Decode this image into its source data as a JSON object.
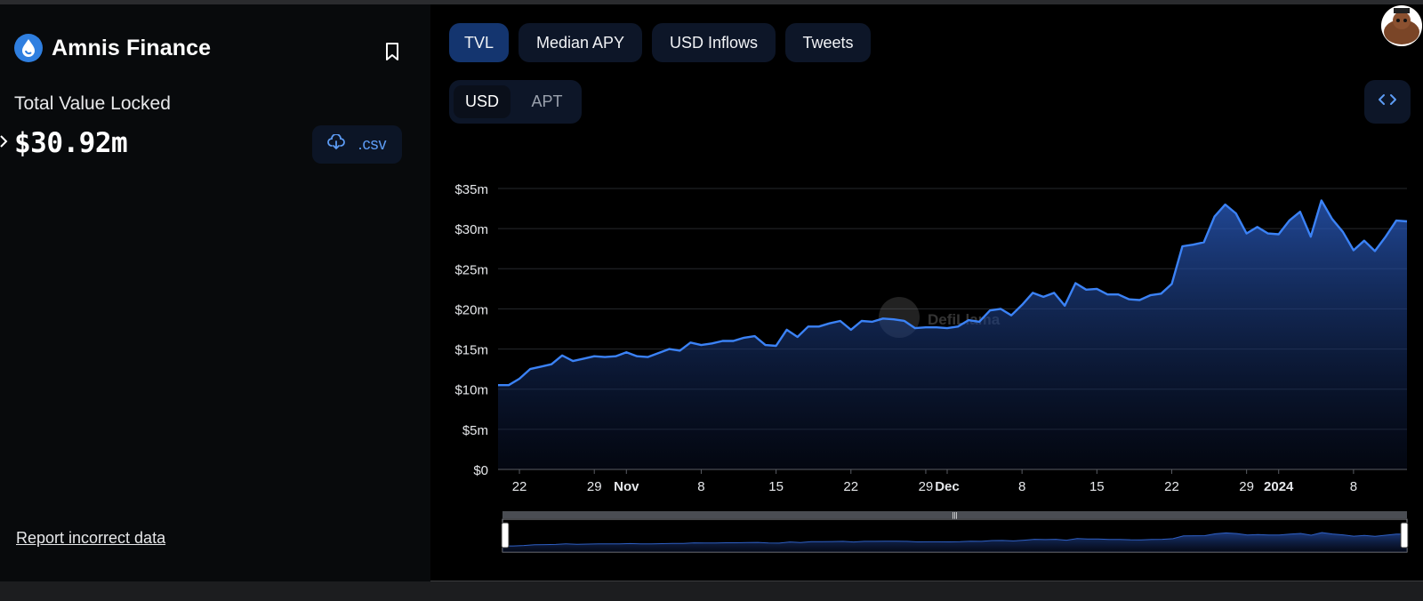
{
  "protocol": {
    "name": "Amnis Finance",
    "logo_icon": "amnis-drop-logo",
    "tvl_label": "Total Value Locked",
    "tvl_value": "$30.92m",
    "csv_label": ".csv",
    "report_label": "Report incorrect data"
  },
  "tabs": [
    {
      "label": "TVL",
      "active": true
    },
    {
      "label": "Median APY",
      "active": false
    },
    {
      "label": "USD Inflows",
      "active": false
    },
    {
      "label": "Tweets",
      "active": false
    }
  ],
  "denomination": [
    {
      "label": "USD",
      "active": true
    },
    {
      "label": "APT",
      "active": false
    }
  ],
  "watermark": "DefiLlama",
  "colors": {
    "accent": "#3b82f6",
    "tab_active": "#14356f",
    "panel_bg": "#080a0c",
    "chart_bg": "#000000"
  },
  "chart_data": {
    "type": "area",
    "title": "",
    "xlabel": "",
    "ylabel": "",
    "ylim": [
      0,
      35000000
    ],
    "yticks": [
      0,
      5000000,
      10000000,
      15000000,
      20000000,
      25000000,
      30000000,
      35000000
    ],
    "ytick_labels": [
      "$0",
      "$5m",
      "$10m",
      "$15m",
      "$20m",
      "$25m",
      "$30m",
      "$35m"
    ],
    "xlim": [
      "2023-10-20",
      "2024-01-11"
    ],
    "xticks": [
      {
        "date": "2023-10-22",
        "label": "22",
        "bold": false
      },
      {
        "date": "2023-10-29",
        "label": "29",
        "bold": false
      },
      {
        "date": "2023-11-01",
        "label": "Nov",
        "bold": true
      },
      {
        "date": "2023-11-08",
        "label": "8",
        "bold": false
      },
      {
        "date": "2023-11-15",
        "label": "15",
        "bold": false
      },
      {
        "date": "2023-11-22",
        "label": "22",
        "bold": false
      },
      {
        "date": "2023-11-29",
        "label": "29",
        "bold": false
      },
      {
        "date": "2023-12-01",
        "label": "Dec",
        "bold": true
      },
      {
        "date": "2023-12-08",
        "label": "8",
        "bold": false
      },
      {
        "date": "2023-12-15",
        "label": "15",
        "bold": false
      },
      {
        "date": "2023-12-22",
        "label": "22",
        "bold": false
      },
      {
        "date": "2023-12-29",
        "label": "29",
        "bold": false
      },
      {
        "date": "2024-01-01",
        "label": "2024",
        "bold": true
      },
      {
        "date": "2024-01-08",
        "label": "8",
        "bold": false
      }
    ],
    "grid": true,
    "legend": "none",
    "series": [
      {
        "values_unit": "USD",
        "points": [
          [
            "2023-10-20",
            10500000
          ],
          [
            "2023-10-21",
            10500000
          ],
          [
            "2023-10-22",
            11300000
          ],
          [
            "2023-10-23",
            12500000
          ],
          [
            "2023-10-24",
            12800000
          ],
          [
            "2023-10-25",
            13100000
          ],
          [
            "2023-10-26",
            14200000
          ],
          [
            "2023-10-27",
            13500000
          ],
          [
            "2023-10-28",
            13800000
          ],
          [
            "2023-10-29",
            14100000
          ],
          [
            "2023-10-30",
            14000000
          ],
          [
            "2023-10-31",
            14100000
          ],
          [
            "2023-11-01",
            14600000
          ],
          [
            "2023-11-02",
            14100000
          ],
          [
            "2023-11-03",
            14000000
          ],
          [
            "2023-11-04",
            14500000
          ],
          [
            "2023-11-05",
            15000000
          ],
          [
            "2023-11-06",
            14800000
          ],
          [
            "2023-11-07",
            15800000
          ],
          [
            "2023-11-08",
            15500000
          ],
          [
            "2023-11-09",
            15700000
          ],
          [
            "2023-11-10",
            16000000
          ],
          [
            "2023-11-11",
            16000000
          ],
          [
            "2023-11-12",
            16400000
          ],
          [
            "2023-11-13",
            16600000
          ],
          [
            "2023-11-14",
            15500000
          ],
          [
            "2023-11-15",
            15400000
          ],
          [
            "2023-11-16",
            17400000
          ],
          [
            "2023-11-17",
            16500000
          ],
          [
            "2023-11-18",
            17800000
          ],
          [
            "2023-11-19",
            17800000
          ],
          [
            "2023-11-20",
            18200000
          ],
          [
            "2023-11-21",
            18500000
          ],
          [
            "2023-11-22",
            17400000
          ],
          [
            "2023-11-23",
            18500000
          ],
          [
            "2023-11-24",
            18400000
          ],
          [
            "2023-11-25",
            18800000
          ],
          [
            "2023-11-26",
            18700000
          ],
          [
            "2023-11-27",
            18500000
          ],
          [
            "2023-11-28",
            17600000
          ],
          [
            "2023-11-29",
            17700000
          ],
          [
            "2023-11-30",
            17700000
          ],
          [
            "2023-12-01",
            17600000
          ],
          [
            "2023-12-02",
            17800000
          ],
          [
            "2023-12-03",
            18600000
          ],
          [
            "2023-12-04",
            18400000
          ],
          [
            "2023-12-05",
            19800000
          ],
          [
            "2023-12-06",
            20000000
          ],
          [
            "2023-12-07",
            19200000
          ],
          [
            "2023-12-08",
            20500000
          ],
          [
            "2023-12-09",
            22000000
          ],
          [
            "2023-12-10",
            21500000
          ],
          [
            "2023-12-11",
            22000000
          ],
          [
            "2023-12-12",
            20400000
          ],
          [
            "2023-12-13",
            23200000
          ],
          [
            "2023-12-14",
            22400000
          ],
          [
            "2023-12-15",
            22500000
          ],
          [
            "2023-12-16",
            21800000
          ],
          [
            "2023-12-17",
            21800000
          ],
          [
            "2023-12-18",
            21200000
          ],
          [
            "2023-12-19",
            21100000
          ],
          [
            "2023-12-20",
            21700000
          ],
          [
            "2023-12-21",
            21900000
          ],
          [
            "2023-12-22",
            23100000
          ],
          [
            "2023-12-23",
            27800000
          ],
          [
            "2023-12-24",
            28000000
          ],
          [
            "2023-12-25",
            28300000
          ],
          [
            "2023-12-26",
            31500000
          ],
          [
            "2023-12-27",
            33000000
          ],
          [
            "2023-12-28",
            31900000
          ],
          [
            "2023-12-29",
            29400000
          ],
          [
            "2023-12-30",
            30200000
          ],
          [
            "2023-12-31",
            29400000
          ],
          [
            "2024-01-01",
            29300000
          ],
          [
            "2024-01-02",
            31000000
          ],
          [
            "2024-01-03",
            32100000
          ],
          [
            "2024-01-04",
            29000000
          ],
          [
            "2024-01-05",
            33500000
          ],
          [
            "2024-01-06",
            31200000
          ],
          [
            "2024-01-07",
            29600000
          ],
          [
            "2024-01-08",
            27300000
          ],
          [
            "2024-01-09",
            28500000
          ],
          [
            "2024-01-10",
            27200000
          ],
          [
            "2024-01-11",
            29000000
          ],
          [
            "2024-01-12",
            31000000
          ],
          [
            "2024-01-13",
            30900000
          ]
        ]
      }
    ]
  }
}
